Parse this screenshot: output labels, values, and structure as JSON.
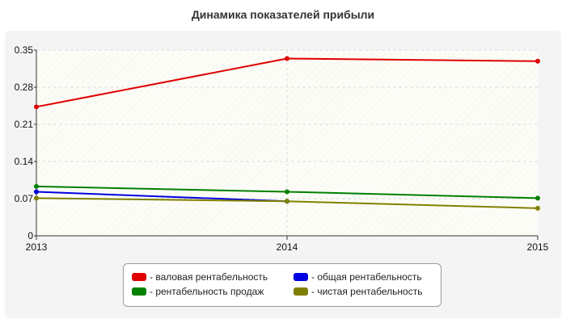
{
  "chart_data": {
    "type": "line",
    "title": "Динамика показателей прибыли",
    "categories": [
      "2013",
      "2014",
      "2015"
    ],
    "ylim": [
      0,
      0.35
    ],
    "yticks": [
      "0.35",
      "0.28",
      "0.21",
      "0.14",
      "0.07",
      "0"
    ],
    "ytick_values": [
      0.35,
      0.28,
      0.21,
      0.14,
      0.07,
      0
    ],
    "grid": true,
    "legend_position": "bottom",
    "series": [
      {
        "name": "- валовая рентабельность",
        "color": "#e00000",
        "values": [
          0.243,
          0.334,
          0.329
        ]
      },
      {
        "name": "- общая рентабельность",
        "color": "#0000e0",
        "values": [
          0.083,
          0.065,
          null
        ]
      },
      {
        "name": "- рентабельность продаж",
        "color": "#008000",
        "values": [
          0.093,
          0.083,
          0.071
        ]
      },
      {
        "name": "- чистая рентабельность",
        "color": "#808000",
        "values": [
          0.071,
          0.065,
          0.052
        ]
      }
    ]
  }
}
